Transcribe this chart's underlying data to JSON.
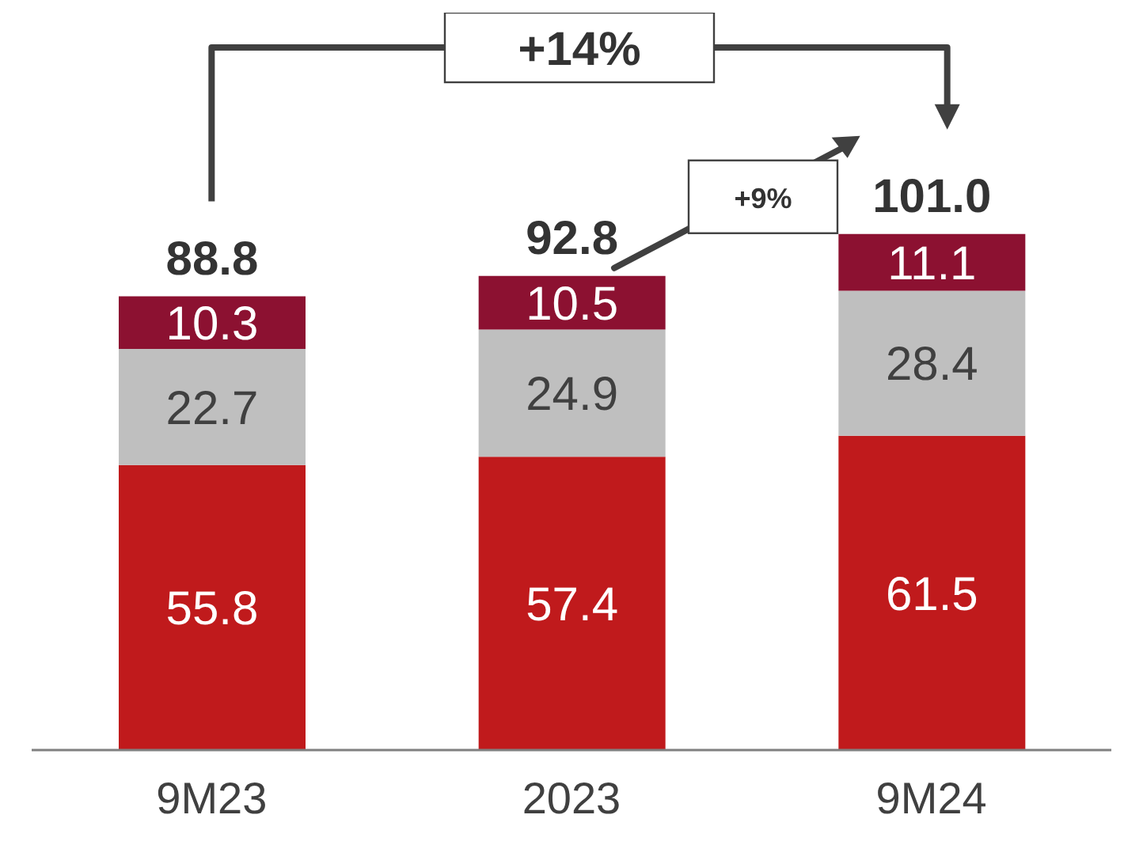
{
  "chart_data": {
    "type": "bar",
    "stacked": true,
    "data_labels": true,
    "categories": [
      "9M23",
      "2023",
      "9M24"
    ],
    "series": [
      {
        "color": "#c01a1c",
        "values": [
          55.8,
          57.4,
          61.5
        ]
      },
      {
        "color": "#bfbfbf",
        "values": [
          22.7,
          24.9,
          28.4
        ]
      },
      {
        "color": "#8c1131",
        "values": [
          10.3,
          10.5,
          11.1
        ]
      }
    ],
    "totals": [
      "88.8",
      "92.8",
      "101.0"
    ],
    "annotations": [
      "+14%",
      "+9%"
    ]
  }
}
